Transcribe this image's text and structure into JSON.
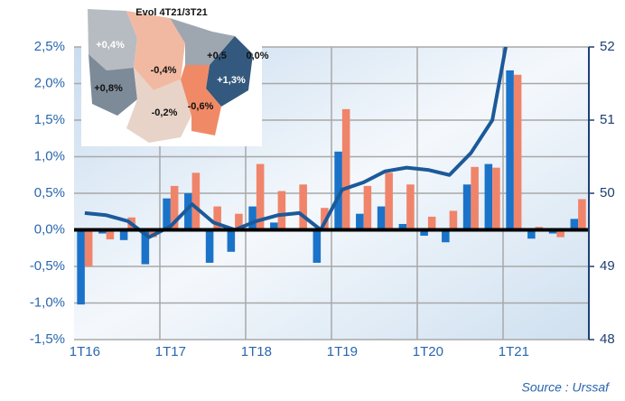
{
  "chart_data": {
    "type": "bar",
    "categories": [
      "1T16",
      null,
      null,
      null,
      "1T17",
      null,
      null,
      null,
      "1T18",
      null,
      null,
      null,
      "1T19",
      null,
      null,
      null,
      "1T20",
      null,
      null,
      null,
      "1T21",
      null,
      null,
      null
    ],
    "series": [
      {
        "color": "#1a73c8",
        "values": [
          -1.02,
          -0.05,
          -0.14,
          -0.47,
          0.43,
          0.5,
          -0.45,
          -0.3,
          0.32,
          0.1,
          0.0,
          -0.45,
          1.07,
          0.22,
          0.32,
          0.08,
          -0.08,
          -0.17,
          0.62,
          0.9,
          2.18,
          -0.12,
          -0.05,
          0.15
        ]
      },
      {
        "color": "#f0846a",
        "values": [
          -0.5,
          -0.13,
          0.17,
          -0.1,
          0.6,
          0.78,
          0.32,
          0.22,
          0.9,
          0.53,
          0.62,
          0.3,
          1.65,
          0.6,
          0.78,
          0.62,
          0.18,
          0.26,
          0.86,
          0.85,
          2.12,
          0.04,
          -0.1,
          0.42
        ]
      },
      {
        "type": "line",
        "axis": "y2",
        "color": "#1b5a9a",
        "values": [
          49.73,
          49.7,
          49.62,
          49.4,
          49.55,
          49.85,
          49.6,
          49.5,
          49.62,
          49.7,
          49.73,
          49.5,
          50.05,
          50.15,
          50.3,
          50.35,
          50.32,
          50.25,
          50.55,
          51.0,
          52.6,
          null,
          null,
          null
        ]
      }
    ],
    "ylim": [
      -1.5,
      2.5
    ],
    "yticks": [
      {
        "value": -1.5,
        "label": "-1,5%"
      },
      {
        "value": -1.0,
        "label": "-1,0%"
      },
      {
        "value": -0.5,
        "label": "-0,5%"
      },
      {
        "value": 0,
        "label": "0,0%"
      },
      {
        "value": 0.5,
        "label": "0,5%"
      },
      {
        "value": 1.0,
        "label": "1,0%"
      },
      {
        "value": 1.5,
        "label": "1,5%"
      },
      {
        "value": 2.0,
        "label": "2,0%"
      },
      {
        "value": 2.5,
        "label": "2,5%"
      }
    ],
    "y2lim": [
      48,
      52
    ],
    "y2ticks": [
      48,
      49,
      50,
      51,
      52
    ],
    "grid": true,
    "source": "Source : Urssaf"
  },
  "map": {
    "title": "Evol 4T21/3T21",
    "regions": [
      "+0,4%",
      "-0,4%",
      "+0,5",
      "0,0%",
      "+0,8%",
      "+1,3%",
      "-0,2%",
      "-0,6%"
    ]
  }
}
